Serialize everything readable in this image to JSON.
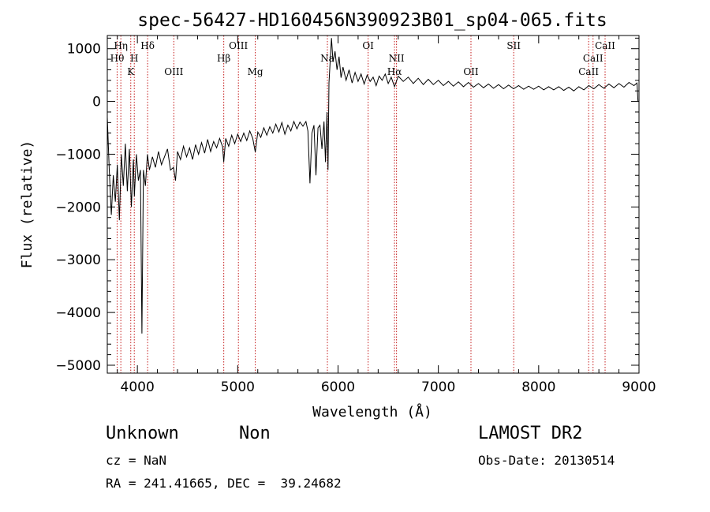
{
  "chart_data": {
    "type": "line",
    "title": "spec-56427-HD160456N390923B01_sp04-065.fits",
    "xlabel": "Wavelength (Å)",
    "ylabel": "Flux (relative)",
    "xlim": [
      3700,
      9000
    ],
    "ylim": [
      -5150,
      1250
    ],
    "xticks": [
      4000,
      5000,
      6000,
      7000,
      8000,
      9000
    ],
    "yticks": [
      1000,
      0,
      -1000,
      -2000,
      -3000,
      -4000,
      -5000
    ],
    "ytick_labels": [
      "1000",
      "0",
      "−1000",
      "−2000",
      "−3000",
      "−4000",
      "−5000"
    ],
    "series": [
      {
        "color": "#000000",
        "points": [
          [
            3700,
            -300
          ],
          [
            3720,
            -1300
          ],
          [
            3740,
            -2150
          ],
          [
            3760,
            -1400
          ],
          [
            3780,
            -1900
          ],
          [
            3800,
            -1200
          ],
          [
            3820,
            -2250
          ],
          [
            3840,
            -1000
          ],
          [
            3860,
            -1600
          ],
          [
            3880,
            -800
          ],
          [
            3900,
            -1700
          ],
          [
            3920,
            -900
          ],
          [
            3940,
            -2000
          ],
          [
            3960,
            -1100
          ],
          [
            3970,
            -1800
          ],
          [
            3990,
            -1000
          ],
          [
            4010,
            -1500
          ],
          [
            4030,
            -1300
          ],
          [
            4045,
            -4400
          ],
          [
            4060,
            -1300
          ],
          [
            4080,
            -1600
          ],
          [
            4100,
            -1000
          ],
          [
            4120,
            -1300
          ],
          [
            4150,
            -1050
          ],
          [
            4180,
            -1250
          ],
          [
            4210,
            -950
          ],
          [
            4240,
            -1200
          ],
          [
            4270,
            -1050
          ],
          [
            4300,
            -900
          ],
          [
            4330,
            -1300
          ],
          [
            4360,
            -1250
          ],
          [
            4380,
            -1500
          ],
          [
            4400,
            -950
          ],
          [
            4430,
            -1100
          ],
          [
            4460,
            -850
          ],
          [
            4490,
            -1050
          ],
          [
            4520,
            -880
          ],
          [
            4550,
            -1100
          ],
          [
            4580,
            -820
          ],
          [
            4610,
            -1000
          ],
          [
            4640,
            -780
          ],
          [
            4670,
            -980
          ],
          [
            4700,
            -720
          ],
          [
            4730,
            -950
          ],
          [
            4760,
            -760
          ],
          [
            4790,
            -880
          ],
          [
            4820,
            -700
          ],
          [
            4850,
            -860
          ],
          [
            4861,
            -1150
          ],
          [
            4880,
            -700
          ],
          [
            4910,
            -850
          ],
          [
            4940,
            -640
          ],
          [
            4970,
            -800
          ],
          [
            5000,
            -620
          ],
          [
            5030,
            -760
          ],
          [
            5060,
            -600
          ],
          [
            5090,
            -740
          ],
          [
            5120,
            -560
          ],
          [
            5150,
            -700
          ],
          [
            5175,
            -960
          ],
          [
            5200,
            -580
          ],
          [
            5230,
            -680
          ],
          [
            5260,
            -500
          ],
          [
            5290,
            -640
          ],
          [
            5320,
            -480
          ],
          [
            5350,
            -600
          ],
          [
            5380,
            -430
          ],
          [
            5410,
            -580
          ],
          [
            5440,
            -400
          ],
          [
            5470,
            -620
          ],
          [
            5500,
            -450
          ],
          [
            5530,
            -560
          ],
          [
            5560,
            -380
          ],
          [
            5590,
            -520
          ],
          [
            5620,
            -390
          ],
          [
            5650,
            -470
          ],
          [
            5680,
            -380
          ],
          [
            5700,
            -560
          ],
          [
            5720,
            -1550
          ],
          [
            5740,
            -600
          ],
          [
            5760,
            -450
          ],
          [
            5780,
            -1400
          ],
          [
            5800,
            -500
          ],
          [
            5820,
            -450
          ],
          [
            5840,
            -900
          ],
          [
            5860,
            -380
          ],
          [
            5875,
            -1150
          ],
          [
            5890,
            -200
          ],
          [
            5900,
            -1300
          ],
          [
            5910,
            350
          ],
          [
            5920,
            700
          ],
          [
            5935,
            1200
          ],
          [
            5950,
            750
          ],
          [
            5970,
            950
          ],
          [
            5990,
            600
          ],
          [
            6010,
            850
          ],
          [
            6030,
            450
          ],
          [
            6050,
            650
          ],
          [
            6080,
            400
          ],
          [
            6110,
            600
          ],
          [
            6140,
            350
          ],
          [
            6170,
            550
          ],
          [
            6200,
            380
          ],
          [
            6230,
            520
          ],
          [
            6260,
            330
          ],
          [
            6290,
            500
          ],
          [
            6320,
            380
          ],
          [
            6350,
            460
          ],
          [
            6380,
            300
          ],
          [
            6410,
            480
          ],
          [
            6440,
            400
          ],
          [
            6470,
            520
          ],
          [
            6500,
            340
          ],
          [
            6530,
            460
          ],
          [
            6563,
            280
          ],
          [
            6600,
            480
          ],
          [
            6650,
            380
          ],
          [
            6700,
            460
          ],
          [
            6750,
            340
          ],
          [
            6800,
            440
          ],
          [
            6850,
            320
          ],
          [
            6900,
            420
          ],
          [
            6950,
            320
          ],
          [
            7000,
            400
          ],
          [
            7050,
            300
          ],
          [
            7100,
            380
          ],
          [
            7150,
            290
          ],
          [
            7200,
            370
          ],
          [
            7250,
            280
          ],
          [
            7300,
            360
          ],
          [
            7350,
            270
          ],
          [
            7400,
            340
          ],
          [
            7450,
            260
          ],
          [
            7500,
            330
          ],
          [
            7550,
            250
          ],
          [
            7600,
            320
          ],
          [
            7650,
            240
          ],
          [
            7700,
            310
          ],
          [
            7750,
            240
          ],
          [
            7800,
            300
          ],
          [
            7850,
            230
          ],
          [
            7900,
            290
          ],
          [
            7950,
            230
          ],
          [
            8000,
            290
          ],
          [
            8050,
            220
          ],
          [
            8100,
            280
          ],
          [
            8150,
            220
          ],
          [
            8200,
            280
          ],
          [
            8250,
            210
          ],
          [
            8300,
            270
          ],
          [
            8350,
            200
          ],
          [
            8400,
            280
          ],
          [
            8450,
            220
          ],
          [
            8500,
            300
          ],
          [
            8550,
            240
          ],
          [
            8600,
            320
          ],
          [
            8650,
            250
          ],
          [
            8700,
            330
          ],
          [
            8750,
            260
          ],
          [
            8800,
            340
          ],
          [
            8850,
            270
          ],
          [
            8900,
            360
          ],
          [
            8950,
            300
          ],
          [
            8980,
            350
          ],
          [
            8990,
            0
          ]
        ]
      }
    ],
    "lines": {
      "color": "#c41a1a",
      "items": [
        {
          "wavelength": 3798,
          "label": "Hθ",
          "row": 2
        },
        {
          "wavelength": 3835,
          "label": "Hη",
          "row": 1
        },
        {
          "wavelength": 3934,
          "label": "K",
          "row": 3
        },
        {
          "wavelength": 3969,
          "label": "H",
          "row": 2
        },
        {
          "wavelength": 4102,
          "label": "Hδ",
          "row": 1
        },
        {
          "wavelength": 4363,
          "label": "OIII",
          "row": 3
        },
        {
          "wavelength": 4861,
          "label": "Hβ",
          "row": 2
        },
        {
          "wavelength": 5007,
          "label": "OIII",
          "row": 1
        },
        {
          "wavelength": 5175,
          "label": "Mg",
          "row": 3
        },
        {
          "wavelength": 5894,
          "label": "Na",
          "row": 2
        },
        {
          "wavelength": 6300,
          "label": "OI",
          "row": 1
        },
        {
          "wavelength": 6563,
          "label": "Hα",
          "row": 3
        },
        {
          "wavelength": 6583,
          "label": "NII",
          "row": 2
        },
        {
          "wavelength": 7325,
          "label": "OII",
          "row": 3
        },
        {
          "wavelength": 7751,
          "label": "SII",
          "row": 1
        },
        {
          "wavelength": 8498,
          "label": "CaII",
          "row": 3
        },
        {
          "wavelength": 8542,
          "label": "CaII",
          "row": 2
        },
        {
          "wavelength": 8662,
          "label": "CaII",
          "row": 1
        }
      ]
    },
    "grid": false,
    "legend": "none"
  },
  "info": {
    "class": "Unknown",
    "subclass": "Non",
    "survey": "LAMOST DR2",
    "cz": "cz = NaN",
    "obs_date": "Obs-Date: 20130514",
    "radec": "RA = 241.41665, DEC =  39.24682"
  }
}
